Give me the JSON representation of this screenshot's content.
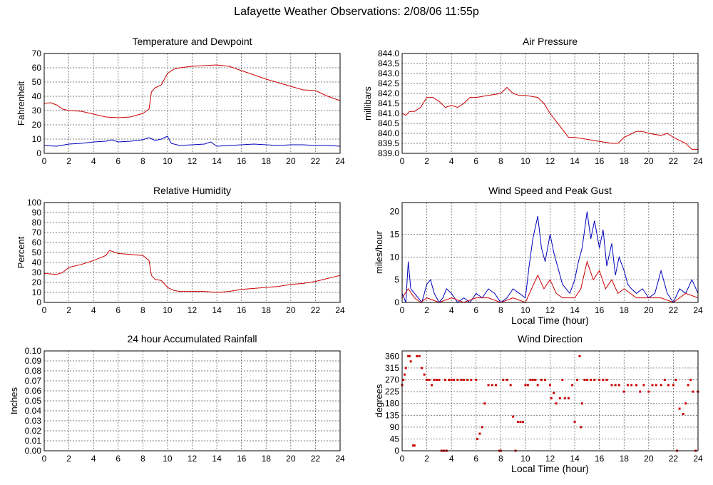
{
  "page_title": "Lafayette Weather Observations: 2/08/06 11:55p",
  "chart_data": [
    {
      "id": "temp",
      "type": "line",
      "title": "Temperature and Dewpoint",
      "xlabel": "",
      "ylabel": "Fahrenheit",
      "xlim": [
        0,
        24
      ],
      "ylim": [
        0,
        70
      ],
      "xticks": [
        0,
        2,
        4,
        6,
        8,
        10,
        12,
        14,
        16,
        18,
        20,
        22,
        24
      ],
      "yticks": [
        0,
        10,
        20,
        30,
        40,
        50,
        60,
        70
      ],
      "ytick_labels": [
        "0",
        "10",
        "20",
        "30",
        "40",
        "50",
        "60",
        "70"
      ],
      "grid": true,
      "series": [
        {
          "color": "#cc0000",
          "x": [
            0,
            0.5,
            1,
            1.5,
            2,
            3,
            4,
            5,
            6,
            7,
            8,
            8.5,
            8.7,
            9,
            9.5,
            10,
            10.5,
            11,
            12,
            13,
            14,
            15,
            16,
            17,
            18,
            19,
            20,
            21,
            22,
            23,
            24
          ],
          "y": [
            35,
            35.5,
            34,
            31,
            30,
            29.5,
            27.5,
            25.5,
            25,
            25.5,
            28,
            31,
            43,
            46,
            48,
            56,
            59,
            60,
            61,
            61.5,
            62,
            61,
            58,
            55,
            52,
            49.5,
            47,
            44.5,
            44,
            40,
            37
          ]
        },
        {
          "color": "#0000bb",
          "x": [
            0,
            1,
            2,
            3,
            4,
            5,
            5.5,
            6,
            7,
            8,
            8.5,
            9,
            9.5,
            10,
            10.3,
            11,
            12,
            13,
            13.5,
            14,
            15,
            16,
            17,
            18,
            19,
            20,
            21,
            22,
            23,
            24
          ],
          "y": [
            5.5,
            5,
            6.5,
            7,
            8,
            8.5,
            9.5,
            8,
            8.5,
            9.5,
            11,
            9,
            10,
            12,
            7,
            5.5,
            6,
            6.5,
            8,
            5,
            5.5,
            6,
            6.5,
            6,
            5.5,
            6,
            6,
            5.5,
            5.5,
            5
          ]
        }
      ]
    },
    {
      "id": "pressure",
      "type": "line",
      "title": "Air Pressure",
      "xlabel": "",
      "ylabel": "millibars",
      "xlim": [
        0,
        24
      ],
      "ylim": [
        839.0,
        844.0
      ],
      "xticks": [
        0,
        2,
        4,
        6,
        8,
        10,
        12,
        14,
        16,
        18,
        20,
        22,
        24
      ],
      "yticks": [
        839.0,
        839.5,
        840.0,
        840.5,
        841.0,
        841.5,
        842.0,
        842.5,
        843.0,
        843.5,
        844.0
      ],
      "ytick_labels": [
        "839.0",
        "839.5",
        "840.0",
        "840.5",
        "841.0",
        "841.5",
        "842.0",
        "842.5",
        "843.0",
        "843.5",
        "844.0"
      ],
      "grid": true,
      "series": [
        {
          "color": "#cc0000",
          "x": [
            0,
            0.3,
            0.6,
            1,
            1.5,
            2,
            2.5,
            3,
            3.5,
            4,
            4.5,
            5,
            5.5,
            6,
            7,
            8,
            8.5,
            9,
            9.5,
            10,
            11,
            11.5,
            12,
            12.5,
            13,
            13.5,
            14,
            15,
            16,
            17,
            17.5,
            18,
            19,
            19.5,
            20,
            21,
            21.5,
            22,
            23,
            23.5,
            24
          ],
          "y": [
            841.0,
            840.9,
            841.1,
            841.1,
            841.3,
            841.8,
            841.8,
            841.6,
            841.3,
            841.4,
            841.3,
            841.5,
            841.8,
            841.8,
            841.9,
            842.0,
            842.3,
            842.0,
            841.9,
            841.9,
            841.8,
            841.5,
            841.0,
            840.6,
            840.2,
            839.8,
            839.8,
            839.7,
            839.6,
            839.5,
            839.5,
            839.8,
            840.1,
            840.1,
            840.0,
            839.9,
            840.0,
            839.8,
            839.5,
            839.2,
            839.2
          ]
        }
      ]
    },
    {
      "id": "humidity",
      "type": "line",
      "title": "Relative Humidity",
      "xlabel": "",
      "ylabel": "Percent",
      "xlim": [
        0,
        24
      ],
      "ylim": [
        0,
        100
      ],
      "xticks": [
        0,
        2,
        4,
        6,
        8,
        10,
        12,
        14,
        16,
        18,
        20,
        22,
        24
      ],
      "yticks": [
        0,
        10,
        20,
        30,
        40,
        50,
        60,
        70,
        80,
        90,
        100
      ],
      "ytick_labels": [
        "0",
        "10",
        "20",
        "30",
        "40",
        "50",
        "60",
        "70",
        "80",
        "90",
        "100"
      ],
      "grid": true,
      "series": [
        {
          "color": "#cc0000",
          "x": [
            0,
            1,
            1.5,
            2,
            3,
            4,
            5,
            5.3,
            6,
            7,
            8,
            8.5,
            8.7,
            9,
            9.5,
            10,
            10.5,
            11,
            12,
            13,
            14,
            15,
            16,
            17,
            18,
            19,
            20,
            21,
            22,
            23,
            24
          ],
          "y": [
            29,
            28,
            30,
            35,
            38,
            42,
            47,
            52,
            49,
            48,
            47,
            42,
            27,
            23,
            22,
            15,
            12,
            11,
            11,
            11,
            10,
            11,
            13,
            14,
            15,
            16,
            18,
            19,
            21,
            24,
            27
          ]
        }
      ]
    },
    {
      "id": "wind",
      "type": "line",
      "title": "Wind Speed and Peak Gust",
      "xlabel": "Local Time (hour)",
      "ylabel": "miles/hour",
      "xlim": [
        0,
        24
      ],
      "ylim": [
        0,
        22
      ],
      "xticks": [
        0,
        2,
        4,
        6,
        8,
        10,
        12,
        14,
        16,
        18,
        20,
        22,
        24
      ],
      "yticks": [
        0,
        5,
        10,
        15,
        20
      ],
      "ytick_labels": [
        "0",
        "5",
        "10",
        "15",
        "20"
      ],
      "grid": true,
      "series": [
        {
          "color": "#0000bb",
          "x": [
            0,
            0.3,
            0.5,
            0.7,
            1,
            1.3,
            1.6,
            2,
            2.3,
            2.6,
            3,
            3.3,
            3.6,
            4,
            4.5,
            5,
            5.5,
            6,
            6.5,
            7,
            7.5,
            8,
            8.5,
            9,
            9.5,
            10,
            10.3,
            10.6,
            11,
            11.3,
            11.6,
            12,
            12.3,
            12.6,
            13,
            13.3,
            13.6,
            14,
            14.3,
            14.6,
            15,
            15.3,
            15.6,
            16,
            16.3,
            16.6,
            17,
            17.3,
            17.6,
            18,
            18.3,
            18.6,
            19,
            19.5,
            20,
            20.5,
            21,
            21.5,
            22,
            22.5,
            23,
            23.5,
            24
          ],
          "y": [
            2,
            0,
            9,
            3,
            2,
            1,
            0,
            4,
            5,
            2,
            0,
            1,
            3,
            2,
            0,
            1,
            0,
            2,
            1,
            3,
            2,
            0,
            1,
            3,
            2,
            1,
            8,
            14,
            19,
            12,
            9,
            15,
            11,
            8,
            4,
            3,
            2,
            5,
            9,
            12,
            20,
            14,
            18,
            12,
            16,
            8,
            13,
            6,
            10,
            7,
            4,
            3,
            2,
            3,
            1,
            2,
            7,
            2,
            0,
            3,
            2,
            5,
            2
          ]
        },
        {
          "color": "#cc0000",
          "x": [
            0,
            0.5,
            1,
            1.5,
            2,
            3,
            4,
            5,
            6,
            7,
            8,
            9,
            10,
            10.5,
            11,
            11.5,
            12,
            12.5,
            13,
            14,
            14.5,
            15,
            15.5,
            16,
            16.5,
            17,
            17.5,
            18,
            19,
            20,
            21,
            22,
            23,
            24
          ],
          "y": [
            1,
            3,
            1,
            0,
            1,
            0,
            1,
            0,
            1,
            1,
            0,
            1,
            0,
            3,
            6,
            3,
            5,
            2,
            1,
            1,
            3,
            9,
            5,
            7,
            3,
            5,
            2,
            3,
            1,
            1,
            1,
            0,
            2,
            1
          ]
        }
      ]
    },
    {
      "id": "rain",
      "type": "line",
      "title": "24 hour Accumulated Rainfall",
      "xlabel": "",
      "ylabel": "Inches",
      "xlim": [
        0,
        24
      ],
      "ylim": [
        0,
        0.1
      ],
      "xticks": [
        0,
        2,
        4,
        6,
        8,
        10,
        12,
        14,
        16,
        18,
        20,
        22,
        24
      ],
      "yticks": [
        0,
        0.01,
        0.02,
        0.03,
        0.04,
        0.05,
        0.06,
        0.07,
        0.08,
        0.09,
        0.1
      ],
      "ytick_labels": [
        "0.00",
        "0.01",
        "0.02",
        "0.03",
        "0.04",
        "0.05",
        "0.06",
        "0.07",
        "0.08",
        "0.09",
        "0.10"
      ],
      "grid": true,
      "series": [
        {
          "color": "#cc0000",
          "x": [
            0,
            24
          ],
          "y": [
            0,
            0
          ]
        }
      ]
    },
    {
      "id": "direction",
      "type": "scatter",
      "title": "Wind Direction",
      "xlabel": "Local Time (hour)",
      "ylabel": "degrees",
      "xlim": [
        0,
        24
      ],
      "ylim": [
        0,
        380
      ],
      "xticks": [
        0,
        2,
        4,
        6,
        8,
        10,
        12,
        14,
        16,
        18,
        20,
        22,
        24
      ],
      "yticks": [
        0,
        45,
        90,
        135,
        180,
        225,
        270,
        315,
        360
      ],
      "ytick_labels": [
        "0",
        "45",
        "90",
        "135",
        "180",
        "225",
        "270",
        "315",
        "360"
      ],
      "grid": true,
      "series": [
        {
          "color": "#cc0000",
          "x": [
            0,
            0.1,
            0.2,
            0.3,
            0.5,
            0.6,
            0.7,
            0.9,
            1.0,
            1.2,
            1.4,
            1.6,
            1.8,
            2.0,
            2.2,
            2.4,
            2.6,
            2.8,
            3.0,
            3.2,
            3.4,
            3.5,
            3.6,
            3.8,
            4.0,
            4.2,
            4.5,
            4.8,
            5.0,
            5.3,
            5.6,
            6.0,
            6.1,
            6.3,
            6.5,
            6.7,
            7.0,
            7.3,
            7.6,
            7.9,
            8.0,
            8.2,
            8.5,
            8.8,
            9.0,
            9.2,
            9.4,
            9.6,
            9.8,
            10.0,
            10.2,
            10.4,
            10.6,
            10.8,
            11.0,
            11.3,
            11.6,
            12.0,
            12.1,
            12.3,
            12.5,
            12.8,
            13.0,
            13.2,
            13.5,
            13.8,
            14.0,
            14.2,
            14.4,
            14.5,
            14.6,
            14.8,
            15.0,
            15.3,
            15.6,
            16.0,
            16.3,
            16.6,
            17.0,
            17.3,
            17.6,
            18.0,
            18.3,
            18.6,
            19.0,
            19.3,
            19.6,
            20.0,
            20.3,
            20.6,
            21.0,
            21.3,
            21.6,
            22.0,
            22.2,
            22.3,
            22.5,
            22.8,
            23.0,
            23.2,
            23.4,
            23.6,
            23.8,
            24.0
          ],
          "y": [
            250,
            270,
            290,
            315,
            360,
            360,
            340,
            20,
            20,
            360,
            360,
            315,
            290,
            270,
            270,
            250,
            270,
            270,
            270,
            0,
            0,
            270,
            0,
            270,
            270,
            270,
            270,
            270,
            270,
            270,
            270,
            270,
            45,
            65,
            90,
            180,
            250,
            250,
            250,
            0,
            0,
            270,
            270,
            250,
            130,
            0,
            110,
            110,
            110,
            250,
            250,
            270,
            270,
            270,
            250,
            270,
            270,
            250,
            200,
            220,
            180,
            200,
            270,
            200,
            200,
            250,
            110,
            270,
            360,
            90,
            180,
            270,
            270,
            270,
            270,
            270,
            270,
            270,
            250,
            250,
            250,
            225,
            250,
            250,
            250,
            225,
            250,
            225,
            250,
            250,
            250,
            270,
            250,
            250,
            270,
            0,
            160,
            140,
            180,
            250,
            270,
            225,
            0,
            225
          ]
        }
      ]
    }
  ]
}
